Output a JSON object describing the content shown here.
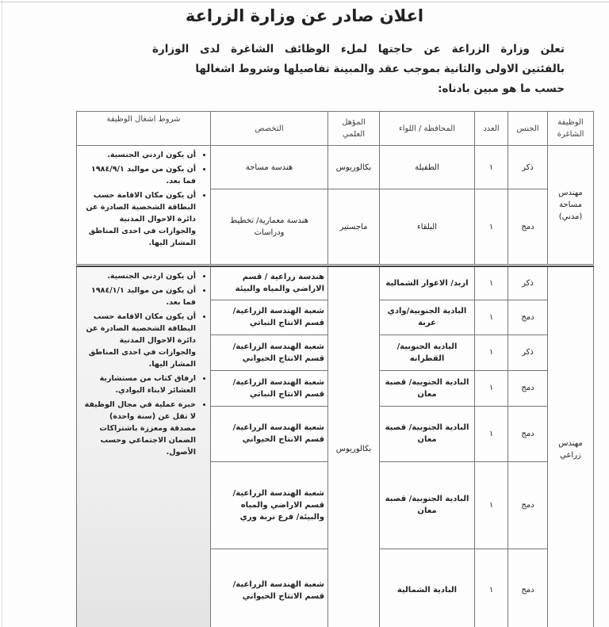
{
  "title": "اعلان صادر عن وزارة الزراعة",
  "intro": [
    "تعلن وزارة الزراعة عن حاجتها لملء الوظائف الشاغرة لدى الوزارة",
    "بالفئتين الاولى والثانية بموجب عقد والمبينة تفاصيلها وشروط اشغالها",
    "حسب ما هو مبين بادناه:"
  ],
  "headers": {
    "job": "الوظيفة الشاغرة",
    "gender": "الجنس",
    "count": "العدد",
    "governorate": "المحافظة / اللواء",
    "qualification": "المؤهل العلمي",
    "specialization": "التخصص",
    "conditions": "شروط اشغال الوظيفة"
  },
  "section1": {
    "job": "مهندس مساحة (مدني)",
    "rows": [
      {
        "gender": "ذكر",
        "count": "١",
        "governorate": "الطفيلة",
        "qualification": "بكالوريوس",
        "specialization": "هندسة مساحة"
      },
      {
        "gender": "دمج",
        "count": "١",
        "governorate": "البلقاء",
        "qualification": "ماجستير",
        "specialization": "هندسة معمارية/ تخطيط ودراسات"
      }
    ],
    "conditions": [
      "أن يكون اردني الجنسية.",
      "أن يكون من مواليد ١٩٨٤/٩/١ فما بعد.",
      "أن يكون مكان الاقامة حسب البطاقة الشخصية الصادرة عن دائرة الاحوال المدنية والجوازات في احدى المناطق المشار اليها."
    ]
  },
  "section2": {
    "job": "مهندس زراعي",
    "qualification": "بكالوريوس",
    "rows": [
      {
        "gender": "ذكر",
        "count": "١",
        "governorate": "اربد/ الاغوار الشمالية",
        "specialization": "هندسة زراعية / قسم الاراضي والمياه والبيئة"
      },
      {
        "gender": "دمج",
        "count": "١",
        "governorate": "البادية الجنوبية/وادي عربة",
        "specialization": "شعبة الهندسة الزراعية/ قسم الانتاج النباتي"
      },
      {
        "gender": "ذكر",
        "count": "١",
        "governorate": "البادية الجنوبية/القطرانه",
        "specialization": "شعبة الهندسة الزراعية/ قسم الانتاج الحيواني"
      },
      {
        "gender": "دمج",
        "count": "١",
        "governorate": "البادية الجنوبية/ قصبة معان",
        "specialization": "شعبة الهندسة الزراعية/ قسم الانتاج النباتي"
      },
      {
        "gender": "دمج",
        "count": "١",
        "governorate": "البادية الجنوبية/ قصبة معان",
        "specialization": "شعبة الهندسة الزراعية/ قسم الانتاج الحيواني"
      },
      {
        "gender": "دمج",
        "count": "١",
        "governorate": "البادية الجنوبية/ قصبة معان",
        "specialization": "شعبة الهندسة الزراعية/ قسم الاراضي والمياه والبيئة/ فرع تربة وري"
      },
      {
        "gender": "دمج",
        "count": "١",
        "governorate": "البادية الشمالية",
        "specialization": "شعبة الهندسة الزراعية/ قسم الانتاج الحيواني"
      }
    ],
    "conditions": [
      "أن يكون اردني الجنسية.",
      "أن يكون من مواليد ١٩٨٤/١/١ فما بعد.",
      "أن يكون مكان الاقامة حسب البطاقة الشخصية الصادرة عن دائرة الاحوال المدنية والجوازات في احدى المناطق المشار اليها.",
      "ارفاق كتاب من مستشارية العشائر لابناء البوادي.",
      "خبرة عملية في مجال الوظيفة لا تقل عن (سنة واحدة) مصدقة ومعززة باشتراكات الضمان الاجتماعي وحسب الأصول."
    ]
  }
}
